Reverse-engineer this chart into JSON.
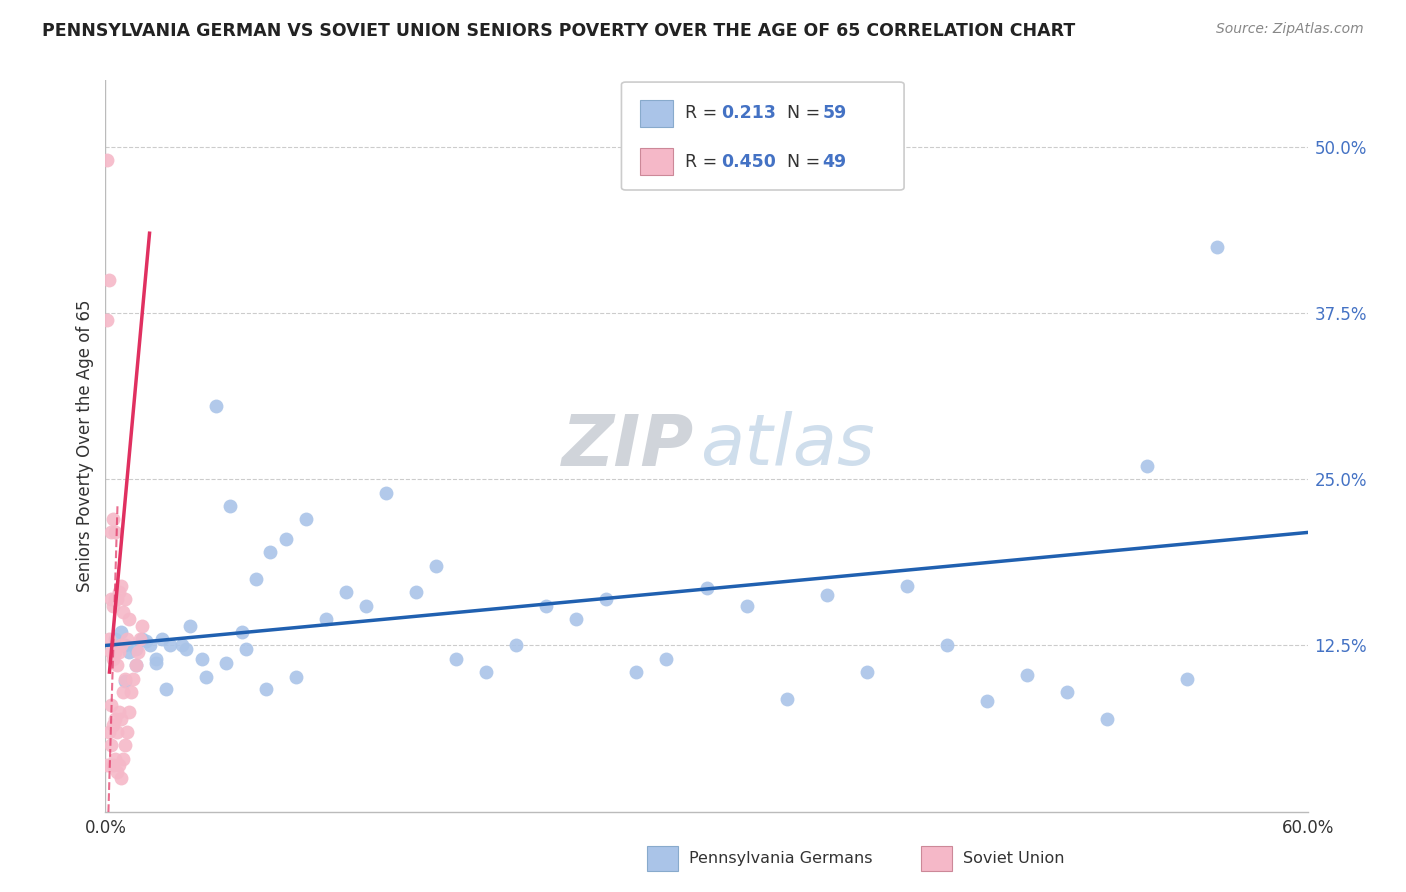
{
  "title": "PENNSYLVANIA GERMAN VS SOVIET UNION SENIORS POVERTY OVER THE AGE OF 65 CORRELATION CHART",
  "source": "Source: ZipAtlas.com",
  "ylabel": "Seniors Poverty Over the Age of 65",
  "xmin": 0.0,
  "xmax": 0.6,
  "ymin": 0.0,
  "ymax": 0.55,
  "y_tick_vals_right": [
    0.5,
    0.375,
    0.25,
    0.125
  ],
  "y_tick_labels_right": [
    "50.0%",
    "37.5%",
    "25.0%",
    "12.5%"
  ],
  "legend_label1": "Pennsylvania Germans",
  "legend_label2": "Soviet Union",
  "R1": 0.213,
  "N1": 59,
  "R2": 0.45,
  "N2": 49,
  "color_blue": "#aac4e8",
  "color_pink": "#f5b8c8",
  "color_blue_line": "#2060b0",
  "color_pink_line": "#e03060",
  "watermark_zip": "ZIP",
  "watermark_atlas": "atlas",
  "pa_x": [
    0.005,
    0.008,
    0.01,
    0.012,
    0.015,
    0.018,
    0.022,
    0.025,
    0.028,
    0.032,
    0.038,
    0.042,
    0.048,
    0.055,
    0.062,
    0.068,
    0.075,
    0.082,
    0.09,
    0.1,
    0.11,
    0.12,
    0.13,
    0.14,
    0.155,
    0.165,
    0.175,
    0.19,
    0.205,
    0.22,
    0.235,
    0.25,
    0.265,
    0.28,
    0.3,
    0.32,
    0.34,
    0.36,
    0.38,
    0.4,
    0.42,
    0.44,
    0.46,
    0.48,
    0.5,
    0.52,
    0.54,
    0.01,
    0.015,
    0.02,
    0.025,
    0.03,
    0.04,
    0.05,
    0.06,
    0.07,
    0.08,
    0.095,
    0.555
  ],
  "pa_y": [
    0.13,
    0.135,
    0.125,
    0.12,
    0.11,
    0.13,
    0.125,
    0.115,
    0.13,
    0.125,
    0.125,
    0.14,
    0.115,
    0.305,
    0.23,
    0.135,
    0.175,
    0.195,
    0.205,
    0.22,
    0.145,
    0.165,
    0.155,
    0.24,
    0.165,
    0.185,
    0.115,
    0.105,
    0.125,
    0.155,
    0.145,
    0.16,
    0.105,
    0.115,
    0.168,
    0.155,
    0.085,
    0.163,
    0.105,
    0.17,
    0.125,
    0.083,
    0.103,
    0.09,
    0.07,
    0.26,
    0.1,
    0.098,
    0.122,
    0.128,
    0.112,
    0.092,
    0.122,
    0.101,
    0.112,
    0.122,
    0.092,
    0.101,
    0.425
  ],
  "su_x": [
    0.001,
    0.001,
    0.002,
    0.002,
    0.002,
    0.003,
    0.003,
    0.003,
    0.003,
    0.003,
    0.004,
    0.004,
    0.004,
    0.004,
    0.004,
    0.005,
    0.005,
    0.005,
    0.005,
    0.005,
    0.006,
    0.006,
    0.006,
    0.006,
    0.007,
    0.007,
    0.007,
    0.007,
    0.008,
    0.008,
    0.008,
    0.008,
    0.009,
    0.009,
    0.009,
    0.01,
    0.01,
    0.01,
    0.011,
    0.011,
    0.012,
    0.012,
    0.013,
    0.014,
    0.015,
    0.016,
    0.017,
    0.018,
    0.001
  ],
  "su_y": [
    0.49,
    0.035,
    0.4,
    0.06,
    0.13,
    0.05,
    0.08,
    0.12,
    0.16,
    0.21,
    0.035,
    0.065,
    0.115,
    0.155,
    0.22,
    0.04,
    0.07,
    0.12,
    0.16,
    0.21,
    0.03,
    0.06,
    0.11,
    0.16,
    0.035,
    0.075,
    0.12,
    0.165,
    0.025,
    0.07,
    0.125,
    0.17,
    0.04,
    0.09,
    0.15,
    0.05,
    0.1,
    0.16,
    0.06,
    0.13,
    0.075,
    0.145,
    0.09,
    0.1,
    0.11,
    0.12,
    0.13,
    0.14,
    0.37
  ]
}
